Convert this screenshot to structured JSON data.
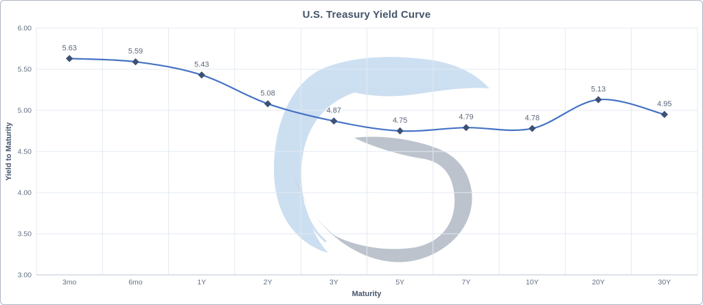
{
  "chart_data": {
    "type": "line",
    "title": "U.S. Treasury Yield Curve",
    "xlabel": "Maturity",
    "ylabel": "Yield to Maturity",
    "categories": [
      "3mo",
      "6mo",
      "1Y",
      "2Y",
      "3Y",
      "5Y",
      "7Y",
      "10Y",
      "20Y",
      "30Y"
    ],
    "values": [
      5.63,
      5.59,
      5.43,
      5.08,
      4.87,
      4.75,
      4.79,
      4.78,
      5.13,
      4.95
    ],
    "data_labels": [
      "5.63",
      "5.59",
      "5.43",
      "5.08",
      "4.87",
      "4.75",
      "4.79",
      "4.78",
      "5.13",
      "4.95"
    ],
    "ylim": [
      3.0,
      6.0
    ],
    "y_tick_labels": [
      "6.00",
      "5.50",
      "5.00",
      "4.50",
      "4.00",
      "3.50",
      "3.00"
    ],
    "grid": true,
    "legend": "none",
    "line_style": "smooth",
    "marker": "diamond"
  },
  "watermark": {
    "icon": "swoosh-logo-watermark"
  },
  "colors": {
    "line": "#4472c4",
    "marker": "#3d5175",
    "title": "#44546a",
    "label": "#5b6678",
    "gridline": "#e3e8f1",
    "axis_line": "#c7cfdc",
    "border": "#aeb5c1",
    "watermark_blue": "#cadef1",
    "watermark_gray": "#b9c0cb",
    "background": "#ffffff"
  }
}
